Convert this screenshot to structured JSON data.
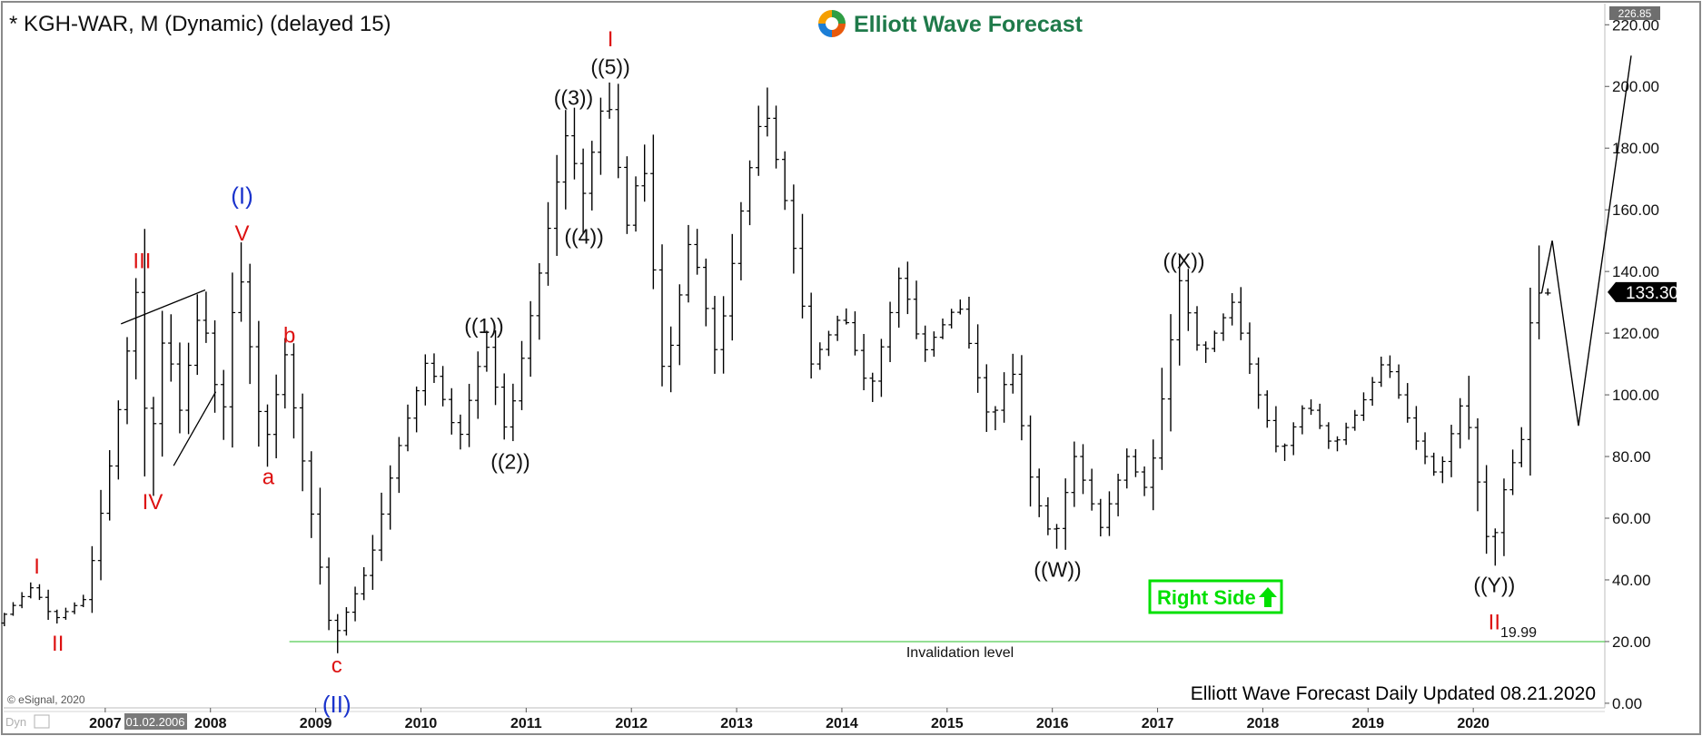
{
  "header": {
    "symbol_title": "* KGH-WAR, M (Dynamic) (delayed 15)",
    "brand_name": "Elliott Wave Forecast",
    "brand_colors": [
      "#2f9e44",
      "#e8590c",
      "#1c7ed6",
      "#f59f00"
    ]
  },
  "footer": {
    "copyright": "© eSignal, 2020",
    "update_text": "Elliott Wave Forecast Daily Updated 08.21.2020",
    "dyn_tag": "Dyn",
    "start_date_tag": "01.02.2006"
  },
  "badge": {
    "text": "Right Side",
    "arrow": "up-arrow-icon",
    "color": "#00e000"
  },
  "chart_data": {
    "type": "ohlc",
    "instrument": "KGH-WAR",
    "timeframe": "M",
    "ylim": [
      -1.5,
      226.85
    ],
    "xlim": [
      2006.0,
      2021.25
    ],
    "y_ticks": [
      "0.00",
      "20.00",
      "40.00",
      "60.00",
      "80.00",
      "100.00",
      "120.00",
      "140.00",
      "160.00",
      "180.00",
      "200.00",
      "220.00"
    ],
    "x_ticks": [
      "2007",
      "2008",
      "2009",
      "2010",
      "2011",
      "2012",
      "2013",
      "2014",
      "2015",
      "2016",
      "2017",
      "2018",
      "2019",
      "2020"
    ],
    "top_value_tag": "226.85",
    "last_price": "133.30",
    "invalidation": {
      "value": 19.99,
      "value_label": "19.99",
      "label": "Invalidation level",
      "color": "#55cc55",
      "x_start": 2008.75
    },
    "colors": {
      "bars": "#000000",
      "red": "#dd1111",
      "blue": "#1a33cc",
      "black": "#111111"
    },
    "pivots": [
      [
        2006.0,
        26
      ],
      [
        2006.35,
        38
      ],
      [
        2006.55,
        27
      ],
      [
        2006.85,
        34
      ],
      [
        2007.1,
        80
      ],
      [
        2007.35,
        137
      ],
      [
        2007.45,
        75
      ],
      [
        2007.6,
        122
      ],
      [
        2007.75,
        95
      ],
      [
        2007.95,
        130
      ],
      [
        2008.15,
        90
      ],
      [
        2008.3,
        145
      ],
      [
        2008.55,
        82
      ],
      [
        2008.75,
        113
      ],
      [
        2009.2,
        20
      ],
      [
        2009.55,
        45
      ],
      [
        2009.8,
        80
      ],
      [
        2010.1,
        112
      ],
      [
        2010.4,
        85
      ],
      [
        2010.65,
        118
      ],
      [
        2010.85,
        87
      ],
      [
        2011.2,
        145
      ],
      [
        2011.45,
        190
      ],
      [
        2011.55,
        160
      ],
      [
        2011.8,
        200
      ],
      [
        2012.0,
        155
      ],
      [
        2012.15,
        178
      ],
      [
        2012.35,
        103
      ],
      [
        2012.6,
        152
      ],
      [
        2012.85,
        112
      ],
      [
        2013.1,
        163
      ],
      [
        2013.3,
        195
      ],
      [
        2013.55,
        155
      ],
      [
        2013.75,
        110
      ],
      [
        2014.05,
        127
      ],
      [
        2014.3,
        100
      ],
      [
        2014.6,
        140
      ],
      [
        2014.8,
        113
      ],
      [
        2015.15,
        130
      ],
      [
        2015.45,
        90
      ],
      [
        2015.65,
        110
      ],
      [
        2015.85,
        70
      ],
      [
        2016.05,
        52
      ],
      [
        2016.25,
        80
      ],
      [
        2016.5,
        57
      ],
      [
        2016.75,
        80
      ],
      [
        2016.95,
        68
      ],
      [
        2017.25,
        137
      ],
      [
        2017.45,
        112
      ],
      [
        2017.75,
        130
      ],
      [
        2018.0,
        100
      ],
      [
        2018.2,
        80
      ],
      [
        2018.45,
        98
      ],
      [
        2018.7,
        83
      ],
      [
        2018.95,
        95
      ],
      [
        2019.2,
        112
      ],
      [
        2019.5,
        85
      ],
      [
        2019.7,
        73
      ],
      [
        2019.95,
        100
      ],
      [
        2020.2,
        47
      ],
      [
        2020.35,
        72
      ],
      [
        2020.55,
        90
      ],
      [
        2020.6,
        140
      ],
      [
        2020.64,
        133
      ]
    ],
    "projection": [
      [
        2020.65,
        133
      ],
      [
        2020.75,
        150
      ],
      [
        2021.0,
        90
      ],
      [
        2021.5,
        210
      ]
    ],
    "wedge_lines": [
      [
        [
          2007.15,
          123
        ],
        [
          2007.95,
          134
        ]
      ],
      [
        [
          2007.65,
          77
        ],
        [
          2008.05,
          101
        ]
      ]
    ],
    "wave_labels": [
      {
        "text": "I",
        "x": 2006.35,
        "y": 42,
        "color": "red"
      },
      {
        "text": "II",
        "x": 2006.55,
        "y": 17,
        "color": "red"
      },
      {
        "text": "III",
        "x": 2007.35,
        "y": 141,
        "color": "red"
      },
      {
        "text": "IV",
        "x": 2007.45,
        "y": 63,
        "color": "red"
      },
      {
        "text": "V",
        "x": 2008.3,
        "y": 150,
        "color": "red"
      },
      {
        "text": "(I)",
        "x": 2008.3,
        "y": 162,
        "color": "blue"
      },
      {
        "text": "a",
        "x": 2008.55,
        "y": 71,
        "color": "red"
      },
      {
        "text": "b",
        "x": 2008.75,
        "y": 117,
        "color": "red"
      },
      {
        "text": "c",
        "x": 2009.2,
        "y": 10,
        "color": "red"
      },
      {
        "text": "(II)",
        "x": 2009.2,
        "y": -3,
        "color": "blue"
      },
      {
        "text": "((1))",
        "x": 2010.6,
        "y": 120,
        "color": "black"
      },
      {
        "text": "((2))",
        "x": 2010.85,
        "y": 76,
        "color": "black"
      },
      {
        "text": "((3))",
        "x": 2011.45,
        "y": 194,
        "color": "black"
      },
      {
        "text": "((4))",
        "x": 2011.55,
        "y": 149,
        "color": "black"
      },
      {
        "text": "((5))",
        "x": 2011.8,
        "y": 204,
        "color": "black"
      },
      {
        "text": "I",
        "x": 2011.8,
        "y": 213,
        "color": "red"
      },
      {
        "text": "((W))",
        "x": 2016.05,
        "y": 41,
        "color": "black"
      },
      {
        "text": "((X))",
        "x": 2017.25,
        "y": 141,
        "color": "black"
      },
      {
        "text": "((Y))",
        "x": 2020.2,
        "y": 36,
        "color": "black"
      },
      {
        "text": "II",
        "x": 2020.2,
        "y": 24,
        "color": "red"
      }
    ]
  }
}
